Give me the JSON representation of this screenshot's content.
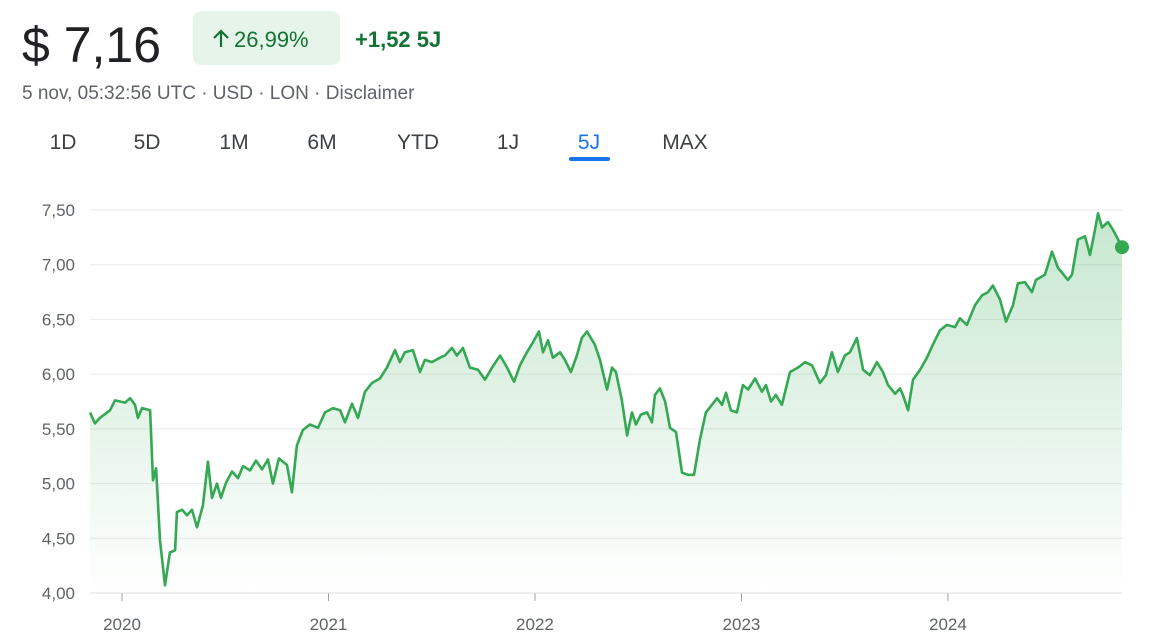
{
  "header": {
    "price": "$ 7,16",
    "change_percent": "26,99%",
    "change": "+1,52 5J",
    "meta": "5 nov, 05:32:56 UTC · USD · LON · Disclaimer"
  },
  "tabs": {
    "items": [
      "1D",
      "5D",
      "1M",
      "6M",
      "YTD",
      "1J",
      "5J",
      "MAX"
    ],
    "selected": 6
  },
  "chart_data": {
    "type": "line",
    "color": "#34a853",
    "grid": true,
    "xlim": [
      2019.845,
      2024.843
    ],
    "xticks": [
      2020,
      2021,
      2022,
      2023,
      2024
    ],
    "ylim": [
      4,
      7.5
    ],
    "yticks": [
      {
        "value": 4,
        "label": "4,00"
      },
      {
        "value": 4.5,
        "label": "4,50"
      },
      {
        "value": 5,
        "label": "5,00"
      },
      {
        "value": 5.5,
        "label": "5,50"
      },
      {
        "value": 6,
        "label": "6,00"
      },
      {
        "value": 6.5,
        "label": "6,50"
      },
      {
        "value": 7,
        "label": "7,00"
      },
      {
        "value": 7.5,
        "label": "7,50"
      }
    ],
    "x": [
      2019.845,
      2019.869,
      2019.893,
      2019.942,
      2019.966,
      2020.015,
      2020.039,
      2020.063,
      2020.077,
      2020.097,
      2020.136,
      2020.15,
      2020.165,
      2020.184,
      2020.208,
      2020.232,
      2020.257,
      2020.266,
      2020.291,
      2020.315,
      2020.339,
      2020.363,
      2020.392,
      2020.416,
      2020.436,
      2020.46,
      2020.479,
      2020.504,
      2020.533,
      2020.562,
      2020.586,
      2020.62,
      2020.649,
      2020.678,
      2020.707,
      2020.731,
      2020.76,
      2020.799,
      2020.823,
      2020.847,
      2020.876,
      2020.91,
      2020.949,
      2020.983,
      2021.022,
      2021.056,
      2021.08,
      2021.114,
      2021.143,
      2021.177,
      2021.211,
      2021.249,
      2021.283,
      2021.322,
      2021.346,
      2021.37,
      2021.409,
      2021.443,
      2021.467,
      2021.501,
      2021.54,
      2021.564,
      2021.598,
      2021.622,
      2021.651,
      2021.685,
      2021.724,
      2021.758,
      2021.792,
      2021.831,
      2021.865,
      2021.899,
      2021.927,
      2021.961,
      2021.99,
      2022.019,
      2022.039,
      2022.063,
      2022.087,
      2022.121,
      2022.145,
      2022.174,
      2022.203,
      2022.227,
      2022.252,
      2022.29,
      2022.315,
      2022.349,
      2022.373,
      2022.392,
      2022.421,
      2022.446,
      2022.47,
      2022.489,
      2022.513,
      2022.543,
      2022.567,
      2022.581,
      2022.605,
      2022.63,
      2022.654,
      2022.683,
      2022.712,
      2022.741,
      2022.77,
      2022.799,
      2022.828,
      2022.857,
      2022.882,
      2022.906,
      2022.925,
      2022.949,
      2022.978,
      2023.007,
      2023.032,
      2023.066,
      2023.099,
      2023.119,
      2023.143,
      2023.167,
      2023.196,
      2023.235,
      2023.274,
      2023.308,
      2023.342,
      2023.38,
      2023.409,
      2023.438,
      2023.467,
      2023.501,
      2023.525,
      2023.559,
      2023.589,
      2023.622,
      2023.656,
      2023.685,
      2023.71,
      2023.744,
      2023.768,
      2023.782,
      2023.807,
      2023.831,
      2023.865,
      2023.898,
      2023.927,
      2023.961,
      2023.995,
      2024.034,
      2024.058,
      2024.092,
      2024.131,
      2024.165,
      2024.194,
      2024.218,
      2024.252,
      2024.281,
      2024.315,
      2024.339,
      2024.373,
      2024.407,
      2024.426,
      2024.47,
      2024.504,
      2024.533,
      2024.552,
      2024.581,
      2024.601,
      2024.63,
      2024.664,
      2024.688,
      2024.712,
      2024.727,
      2024.746,
      2024.775,
      2024.799,
      2024.824,
      2024.843
    ],
    "values": [
      5.65,
      5.55,
      5.6,
      5.67,
      5.76,
      5.74,
      5.78,
      5.72,
      5.6,
      5.69,
      5.67,
      5.03,
      5.14,
      4.48,
      4.07,
      4.37,
      4.39,
      4.74,
      4.76,
      4.71,
      4.76,
      4.6,
      4.8,
      5.2,
      4.87,
      5.0,
      4.87,
      5.01,
      5.11,
      5.05,
      5.16,
      5.12,
      5.21,
      5.13,
      5.22,
      5.0,
      5.23,
      5.17,
      4.92,
      5.35,
      5.49,
      5.54,
      5.51,
      5.65,
      5.69,
      5.67,
      5.56,
      5.73,
      5.6,
      5.84,
      5.92,
      5.96,
      6.06,
      6.22,
      6.11,
      6.2,
      6.22,
      6.02,
      6.13,
      6.11,
      6.15,
      6.17,
      6.24,
      6.17,
      6.24,
      6.06,
      6.04,
      5.95,
      6.06,
      6.17,
      6.06,
      5.93,
      6.08,
      6.2,
      6.29,
      6.39,
      6.2,
      6.31,
      6.15,
      6.2,
      6.13,
      6.02,
      6.17,
      6.33,
      6.39,
      6.27,
      6.13,
      5.86,
      6.06,
      6.02,
      5.76,
      5.44,
      5.65,
      5.54,
      5.63,
      5.65,
      5.56,
      5.81,
      5.87,
      5.75,
      5.51,
      5.47,
      5.1,
      5.08,
      5.08,
      5.4,
      5.65,
      5.72,
      5.78,
      5.72,
      5.83,
      5.67,
      5.65,
      5.9,
      5.86,
      5.96,
      5.84,
      5.9,
      5.75,
      5.81,
      5.72,
      6.02,
      6.06,
      6.11,
      6.08,
      5.92,
      5.99,
      6.2,
      6.02,
      6.17,
      6.2,
      6.33,
      6.04,
      5.99,
      6.11,
      6.02,
      5.9,
      5.82,
      5.87,
      5.81,
      5.67,
      5.95,
      6.04,
      6.15,
      6.27,
      6.4,
      6.45,
      6.43,
      6.51,
      6.45,
      6.63,
      6.72,
      6.75,
      6.81,
      6.68,
      6.48,
      6.63,
      6.83,
      6.84,
      6.75,
      6.86,
      6.91,
      7.12,
      6.97,
      6.93,
      6.86,
      6.91,
      7.23,
      7.26,
      7.09,
      7.32,
      7.47,
      7.34,
      7.39,
      7.32,
      7.23,
      7.16
    ]
  }
}
